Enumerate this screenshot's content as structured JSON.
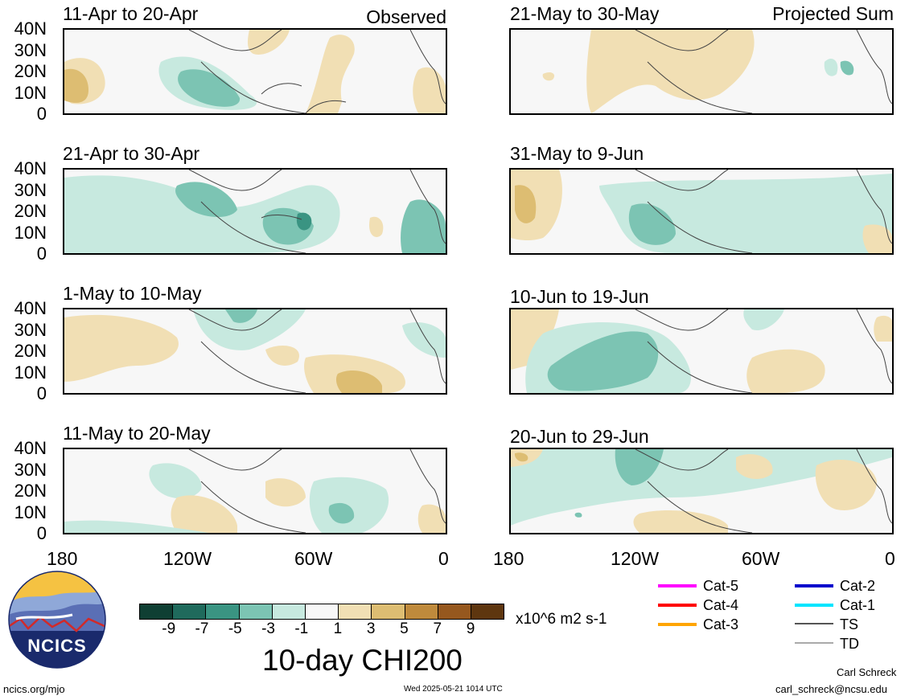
{
  "panels": [
    {
      "title": "11-Apr to 20-Apr",
      "tag": "Observed"
    },
    {
      "title": "21-Apr to 30-Apr",
      "tag": ""
    },
    {
      "title": "1-May to 10-May",
      "tag": ""
    },
    {
      "title": "11-May to 20-May",
      "tag": ""
    },
    {
      "title": "21-May to 30-May",
      "tag": "Projected Sum"
    },
    {
      "title": "31-May to 9-Jun",
      "tag": ""
    },
    {
      "title": "10-Jun to 19-Jun",
      "tag": ""
    },
    {
      "title": "20-Jun to 29-Jun",
      "tag": ""
    }
  ],
  "lat_labels": [
    "40N",
    "30N",
    "20N",
    "10N",
    "0"
  ],
  "lon_labels": [
    "180",
    "120W",
    "60W",
    "0"
  ],
  "colorbar": {
    "ticks": [
      "-9",
      "-7",
      "-5",
      "-3",
      "-1",
      "1",
      "3",
      "5",
      "7",
      "9"
    ],
    "colors": [
      "#0f3f33",
      "#1f6a5c",
      "#3a9482",
      "#7cc4b3",
      "#c7e9df",
      "#f7f7f7",
      "#f1dfb4",
      "#ddbd72",
      "#bf8a3c",
      "#96581e",
      "#5e360f"
    ],
    "units": "x10^6 m2 s-1"
  },
  "title": "10-day CHI200",
  "logo_text": "NCICS",
  "legend": [
    {
      "label": "Cat-5",
      "color": "#ff00ff"
    },
    {
      "label": "Cat-4",
      "color": "#ff0000"
    },
    {
      "label": "Cat-3",
      "color": "#ffa500"
    },
    {
      "label": "Cat-2",
      "color": "#0000cc"
    },
    {
      "label": "Cat-1",
      "color": "#00e5ff"
    },
    {
      "label": "TS",
      "color": "#555555"
    },
    {
      "label": "TD",
      "color": "#aaaaaa"
    }
  ],
  "footer": {
    "site": "ncics.org/mjo",
    "timestamp": "Wed 2025-05-21 1014 UTC",
    "author": "Carl Schreck",
    "email": "carl_schreck@ncsu.edu"
  }
}
